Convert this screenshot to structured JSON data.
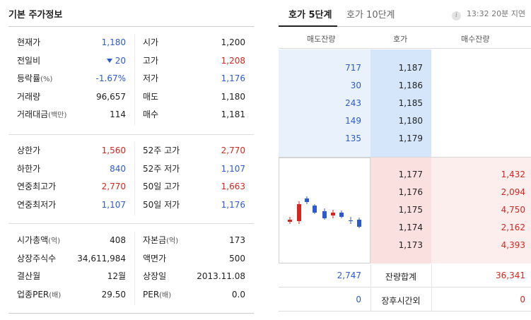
{
  "left": {
    "title": "기본 주가정보",
    "section1": [
      {
        "l1": "현재가",
        "v1": "1,180",
        "c1": "blue",
        "l2": "시가",
        "v2": "1,200",
        "c2": "dark"
      },
      {
        "l1": "전일비",
        "v1": "20",
        "c1": "blue",
        "l2": "고가",
        "v2": "1,208",
        "c2": "red",
        "arrow": "down-triangle-icon"
      },
      {
        "l1": "등락률",
        "l1sub": "(%)",
        "v1": "-1.67%",
        "c1": "blue",
        "l2": "저가",
        "v2": "1,176",
        "c2": "blue"
      },
      {
        "l1": "거래량",
        "v1": "96,657",
        "c1": "dark",
        "l2": "매도",
        "v2": "1,180",
        "c2": "dark"
      },
      {
        "l1": "거래대금",
        "l1sub": "(백만)",
        "v1": "114",
        "c1": "dark",
        "l2": "매수",
        "v2": "1,181",
        "c2": "dark"
      }
    ],
    "section2": [
      {
        "l1": "상한가",
        "v1": "1,560",
        "c1": "red",
        "l2": "52주 고가",
        "v2": "2,770",
        "c2": "red"
      },
      {
        "l1": "하한가",
        "v1": "840",
        "c1": "blue",
        "l2": "52주 저가",
        "v2": "1,107",
        "c2": "blue"
      },
      {
        "l1": "연중최고가",
        "v1": "2,770",
        "c1": "red",
        "l2": "50일 고가",
        "v2": "1,663",
        "c2": "red"
      },
      {
        "l1": "연중최저가",
        "v1": "1,107",
        "c1": "blue",
        "l2": "50일 저가",
        "v2": "1,176",
        "c2": "blue"
      }
    ],
    "section3": [
      {
        "l1": "시가총액",
        "l1sub": "(억)",
        "v1": "408",
        "c1": "dark",
        "l2": "자본금",
        "l2sub": "(억)",
        "v2": "173",
        "c2": "dark"
      },
      {
        "l1": "상장주식수",
        "v1": "34,611,984",
        "c1": "dark",
        "l2": "액면가",
        "v2": "500",
        "c2": "dark"
      },
      {
        "l1": "결산월",
        "v1": "12월",
        "c1": "dark",
        "l2": "상장일",
        "v2": "2013.11.08",
        "c2": "dark"
      },
      {
        "l1": "업종PER",
        "l1sub": "(배)",
        "v1": "29.50",
        "c1": "dark",
        "l2": "PER",
        "l2sub": "(배)",
        "v2": "0.0",
        "c2": "dark"
      }
    ]
  },
  "right": {
    "tabs": [
      {
        "label": "호가 5단계",
        "active": true
      },
      {
        "label": "호가 10단계",
        "active": false
      }
    ],
    "delay_text": "13:32 20분 지연",
    "info_icon": "i",
    "headers": {
      "ask": "매도잔량",
      "price": "호가",
      "bid": "매수잔량"
    },
    "asks": [
      {
        "volume": "717",
        "price": "1,187"
      },
      {
        "volume": "30",
        "price": "1,186"
      },
      {
        "volume": "243",
        "price": "1,185"
      },
      {
        "volume": "149",
        "price": "1,180"
      },
      {
        "volume": "135",
        "price": "1,179"
      }
    ],
    "bids": [
      {
        "price": "1,177",
        "volume": "1,432"
      },
      {
        "price": "1,176",
        "volume": "2,094"
      },
      {
        "price": "1,175",
        "volume": "4,750"
      },
      {
        "price": "1,174",
        "volume": "2,162"
      },
      {
        "price": "1,173",
        "volume": "4,393"
      }
    ],
    "total": {
      "ask": "2,747",
      "label": "잔량합계",
      "bid": "36,341"
    },
    "after_hours": {
      "ask": "0",
      "label": "장후시간외",
      "bid": "0"
    }
  },
  "colors": {
    "up": "#d6261e",
    "down": "#2c5bd1",
    "ask_bg": "#e9f2fc",
    "bid_bg": "#fdeeee"
  }
}
